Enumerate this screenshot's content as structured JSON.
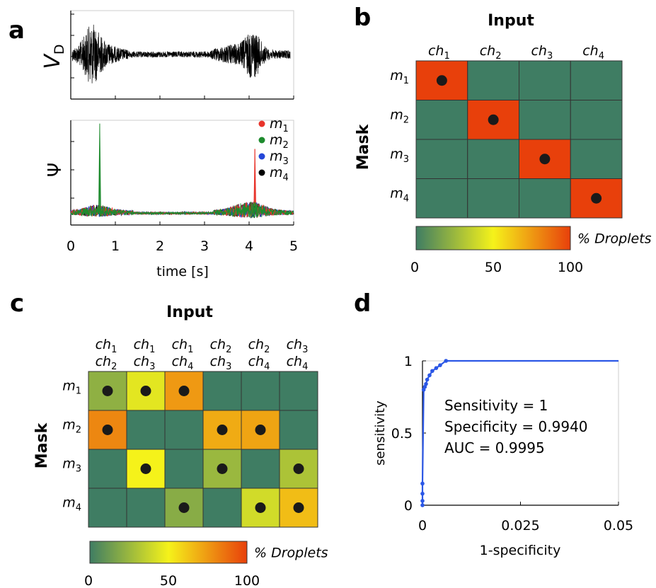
{
  "panels": {
    "a": "a",
    "b": "b",
    "c": "c",
    "d": "d"
  },
  "colors": {
    "low": "#3f7d63",
    "mid": "#f5f21a",
    "high": "#e8400b",
    "signal": "#000000",
    "m1": "#e8332a",
    "m2": "#1e8b2e",
    "m3": "#2446d8",
    "m4": "#000000",
    "roc": "#2b57e6"
  },
  "chart_data": [
    {
      "type": "line",
      "panel": "a-top",
      "ylabel_main": "V",
      "ylabel_sub": "D",
      "series": [
        {
          "values": []
        }
      ]
    },
    {
      "type": "line",
      "panel": "a-bottom",
      "xlabel": "time [s]",
      "ylabel": "Ψ",
      "x_ticks": [
        "0",
        "1",
        "2",
        "3",
        "4",
        "5"
      ],
      "xlim": [
        0,
        5
      ],
      "legend_position": "top-right",
      "series": [
        {
          "name": "m",
          "sub": "1",
          "color_key": "m1",
          "peaks": [
            {
              "x": 4.13,
              "y": 0.7
            }
          ]
        },
        {
          "name": "m",
          "sub": "2",
          "color_key": "m2",
          "peaks": [
            {
              "x": 0.65,
              "y": 0.98
            }
          ]
        },
        {
          "name": "m",
          "sub": "3",
          "color_key": "m3",
          "peaks": []
        },
        {
          "name": "m",
          "sub": "4",
          "color_key": "m4",
          "peaks": []
        }
      ]
    },
    {
      "type": "heatmap",
      "panel": "b",
      "title": "Input",
      "ylabel": "Mask",
      "columns": [
        {
          "a": "ch",
          "as": "1"
        },
        {
          "a": "ch",
          "as": "2"
        },
        {
          "a": "ch",
          "as": "3"
        },
        {
          "a": "ch",
          "as": "4"
        }
      ],
      "rows": [
        {
          "a": "m",
          "as": "1"
        },
        {
          "a": "m",
          "as": "2"
        },
        {
          "a": "m",
          "as": "3"
        },
        {
          "a": "m",
          "as": "4"
        }
      ],
      "values": [
        [
          100,
          0,
          0,
          0
        ],
        [
          0,
          100,
          0,
          0
        ],
        [
          0,
          0,
          100,
          0
        ],
        [
          0,
          0,
          0,
          100
        ]
      ],
      "dots": [
        [
          1,
          0,
          0,
          0
        ],
        [
          0,
          1,
          0,
          0
        ],
        [
          0,
          0,
          1,
          0
        ],
        [
          0,
          0,
          0,
          1
        ]
      ],
      "colorbar": {
        "label": "% Droplets",
        "ticks": [
          "0",
          "50",
          "100"
        ],
        "range": [
          0,
          100
        ]
      }
    },
    {
      "type": "heatmap",
      "panel": "c",
      "title": "Input",
      "ylabel": "Mask",
      "columns": [
        {
          "a": "ch",
          "as": "1",
          "b": "ch",
          "bs": "2"
        },
        {
          "a": "ch",
          "as": "1",
          "b": "ch",
          "bs": "3"
        },
        {
          "a": "ch",
          "as": "1",
          "b": "ch",
          "bs": "4"
        },
        {
          "a": "ch",
          "as": "2",
          "b": "ch",
          "bs": "3"
        },
        {
          "a": "ch",
          "as": "2",
          "b": "ch",
          "bs": "4"
        },
        {
          "a": "ch",
          "as": "3",
          "b": "ch",
          "bs": "4"
        }
      ],
      "rows": [
        {
          "a": "m",
          "as": "1"
        },
        {
          "a": "m",
          "as": "2"
        },
        {
          "a": "m",
          "as": "3"
        },
        {
          "a": "m",
          "as": "4"
        }
      ],
      "values": [
        [
          22,
          45,
          75,
          0,
          0,
          0
        ],
        [
          80,
          0,
          0,
          70,
          72,
          0
        ],
        [
          0,
          50,
          0,
          25,
          0,
          30
        ],
        [
          0,
          0,
          20,
          0,
          40,
          65
        ]
      ],
      "dots": [
        [
          1,
          1,
          1,
          0,
          0,
          0
        ],
        [
          1,
          0,
          0,
          1,
          1,
          0
        ],
        [
          0,
          1,
          0,
          1,
          0,
          1
        ],
        [
          0,
          0,
          1,
          0,
          1,
          1
        ]
      ],
      "colorbar": {
        "label": "% Droplets",
        "ticks": [
          "0",
          "50",
          "100"
        ],
        "range": [
          0,
          100
        ]
      }
    },
    {
      "type": "line",
      "panel": "d",
      "xlabel": "1-specificity",
      "ylabel": "sensitivity",
      "x_ticks": [
        "0",
        "0.025",
        "0.05"
      ],
      "y_ticks": [
        "0",
        "0.5",
        "1"
      ],
      "xlim": [
        0,
        0.05
      ],
      "ylim": [
        0,
        1
      ],
      "annotations": [
        "Sensitivity = 1",
        "Specificity = 0.9940",
        "AUC = 0.9995"
      ],
      "series": [
        {
          "x": [
            0,
            0,
            0,
            0,
            0.0003,
            0.0006,
            0.0009,
            0.0012,
            0.0018,
            0.0025,
            0.0035,
            0.0045,
            0.006,
            0.05
          ],
          "y": [
            0,
            0.03,
            0.08,
            0.15,
            0.8,
            0.82,
            0.84,
            0.87,
            0.9,
            0.93,
            0.95,
            0.97,
            1.0,
            1.0
          ]
        }
      ]
    }
  ]
}
